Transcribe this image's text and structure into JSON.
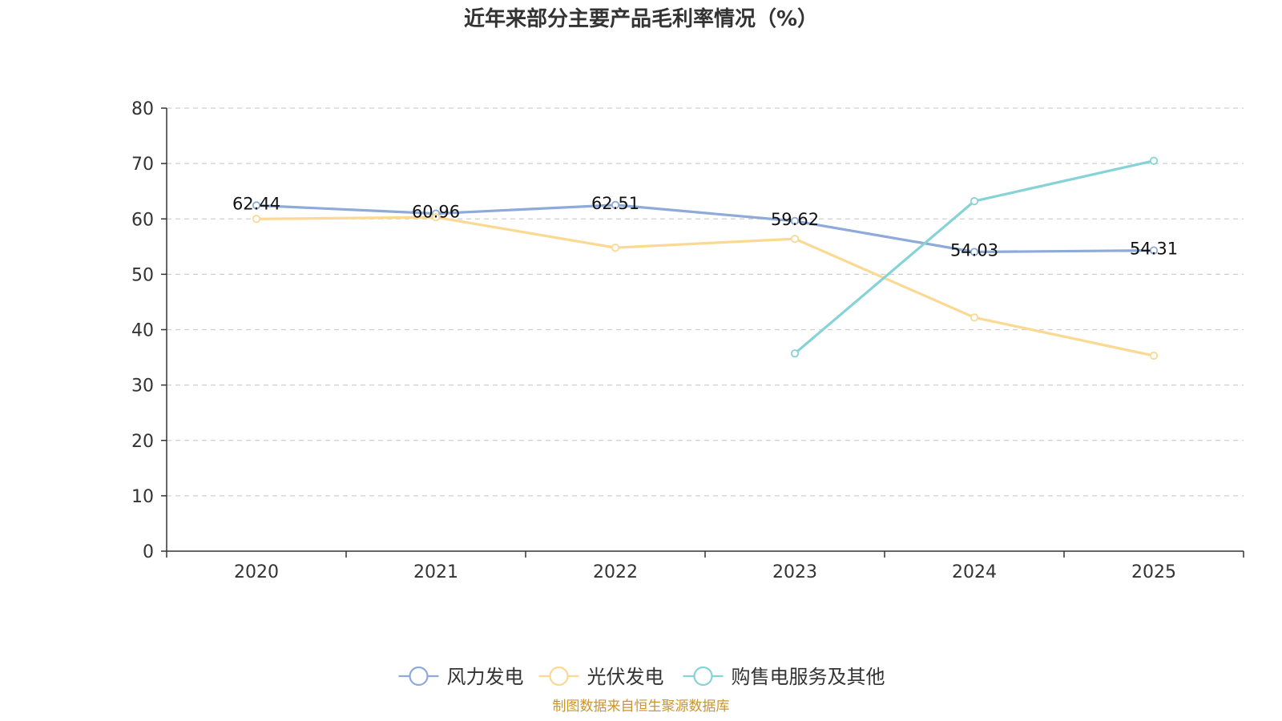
{
  "chart_data": {
    "type": "line",
    "title": "近年来部分主要产品毛利率情况（%）",
    "categories": [
      "2020",
      "2021",
      "2022",
      "2023",
      "2024",
      "2025"
    ],
    "ylim": [
      0,
      80
    ],
    "yticks": [
      0,
      10,
      20,
      30,
      40,
      50,
      60,
      70,
      80
    ],
    "ytick_labels": [
      "0",
      "10",
      "20",
      "30",
      "40",
      "50",
      "60",
      "70",
      "80"
    ],
    "grid": "horizontal dashed",
    "legend_position": "bottom-center",
    "series": [
      {
        "name": "风力发电",
        "color": "#8eaad8",
        "values": [
          62.44,
          60.96,
          62.51,
          59.62,
          54.03,
          54.31
        ],
        "labels": [
          "62.44",
          "60.96",
          "62.51",
          "59.62",
          "54.03",
          "54.31"
        ]
      },
      {
        "name": "光伏发电",
        "color": "#fbd993",
        "values": [
          60.0,
          60.3,
          54.8,
          56.4,
          42.2,
          35.3
        ],
        "labels": []
      },
      {
        "name": "购售电服务及其他",
        "color": "#86d3d7",
        "values": [
          null,
          null,
          null,
          35.7,
          63.2,
          70.5
        ],
        "labels": []
      }
    ],
    "source": "制图数据来自恒生聚源数据库",
    "source_color": "#c9952e"
  }
}
